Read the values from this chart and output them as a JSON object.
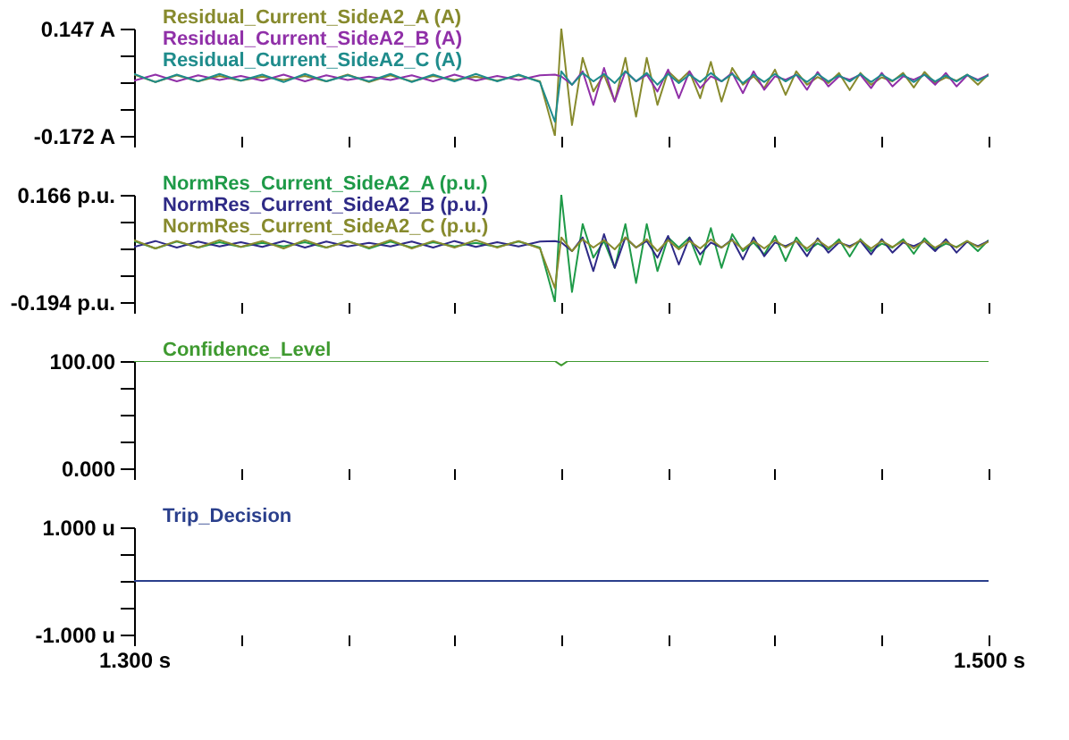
{
  "chart_data": [
    {
      "type": "line",
      "legend": "top left",
      "tick_labels": "y",
      "xlim": [
        1.3,
        1.5
      ],
      "xticks": [
        {
          "value": 1.3,
          "label": null
        },
        {
          "value": 1.325,
          "label": null
        },
        {
          "value": 1.35,
          "label": null
        },
        {
          "value": 1.375,
          "label": null
        },
        {
          "value": 1.4,
          "label": null
        },
        {
          "value": 1.425,
          "label": null
        },
        {
          "value": 1.45,
          "label": null
        },
        {
          "value": 1.475,
          "label": null
        },
        {
          "value": 1.5,
          "label": null
        }
      ],
      "ylim": [
        -0.172,
        0.147
      ],
      "yticks": [
        {
          "value": 0.147,
          "label": "0.147 A"
        },
        {
          "value": 0.0672,
          "label": null
        },
        {
          "value": -0.0125,
          "label": null
        },
        {
          "value": -0.0922,
          "label": null
        },
        {
          "value": -0.172,
          "label": "-0.172 A"
        }
      ],
      "x": [
        1.3,
        1.305,
        1.31,
        1.315,
        1.32,
        1.325,
        1.33,
        1.335,
        1.34,
        1.345,
        1.35,
        1.355,
        1.36,
        1.365,
        1.37,
        1.375,
        1.38,
        1.385,
        1.39,
        1.395,
        1.3985,
        1.4,
        1.4025,
        1.405,
        1.4075,
        1.41,
        1.4125,
        1.415,
        1.4175,
        1.42,
        1.4225,
        1.425,
        1.4275,
        1.43,
        1.4325,
        1.435,
        1.4375,
        1.44,
        1.4425,
        1.445,
        1.4475,
        1.45,
        1.4525,
        1.455,
        1.4575,
        1.46,
        1.4625,
        1.465,
        1.4675,
        1.47,
        1.4725,
        1.475,
        1.4775,
        1.48,
        1.4825,
        1.485,
        1.4875,
        1.49,
        1.4925,
        1.495,
        1.4975,
        1.5
      ],
      "series": [
        {
          "name": "Residual_Current_SideA2_A (A)",
          "color": "#878a2d",
          "values": [
            0.01,
            -0.012,
            0.008,
            -0.01,
            0.006,
            -0.008,
            0.004,
            -0.006,
            0.006,
            -0.01,
            0.01,
            -0.012,
            0.008,
            -0.01,
            0.006,
            -0.006,
            0.004,
            -0.008,
            0.008,
            -0.01,
            -0.172,
            0.147,
            -0.14,
            0.06,
            -0.04,
            0.01,
            -0.07,
            0.06,
            -0.115,
            0.06,
            -0.08,
            0.02,
            -0.01,
            0.02,
            -0.06,
            0.048,
            -0.07,
            0.03,
            -0.02,
            0.005,
            -0.03,
            0.025,
            -0.05,
            0.02,
            -0.02,
            0.003,
            -0.015,
            0.015,
            -0.036,
            0.015,
            -0.02,
            0.002,
            -0.01,
            0.015,
            -0.028,
            0.018,
            -0.015,
            0.002,
            -0.008,
            0.01,
            -0.02,
            0.012
          ]
        },
        {
          "name": "Residual_Current_SideA2_B (A)",
          "color": "#9030a8",
          "values": [
            -0.008,
            0.01,
            -0.01,
            0.008,
            -0.006,
            0.006,
            -0.008,
            0.01,
            -0.01,
            0.008,
            -0.006,
            0.004,
            -0.006,
            0.008,
            -0.01,
            0.01,
            -0.008,
            0.006,
            -0.006,
            0.008,
            0.01,
            0.005,
            -0.02,
            0.02,
            -0.08,
            0.03,
            -0.07,
            0.02,
            -0.01,
            0.01,
            -0.04,
            0.025,
            -0.06,
            0.02,
            -0.03,
            0.005,
            -0.01,
            0.015,
            -0.045,
            0.02,
            -0.035,
            0.005,
            -0.005,
            0.01,
            -0.035,
            0.018,
            -0.025,
            0.005,
            -0.005,
            0.01,
            -0.03,
            0.015,
            -0.025,
            0.005,
            -0.005,
            0.01,
            -0.02,
            0.015,
            -0.025,
            0.008,
            -0.005,
            0.01
          ]
        },
        {
          "name": "Residual_Current_SideA2_C (A)",
          "color": "#1f8c8c",
          "values": [
            0.012,
            -0.012,
            0.01,
            -0.01,
            0.012,
            -0.008,
            0.01,
            -0.012,
            0.012,
            -0.01,
            0.008,
            -0.01,
            0.012,
            -0.012,
            0.01,
            -0.01,
            0.012,
            -0.01,
            0.01,
            -0.012,
            -0.13,
            0.02,
            -0.02,
            0.015,
            -0.01,
            0.012,
            -0.015,
            0.02,
            -0.01,
            0.015,
            -0.02,
            0.012,
            -0.015,
            0.01,
            -0.012,
            0.015,
            -0.01,
            0.012,
            -0.015,
            0.01,
            -0.012,
            0.012,
            -0.01,
            0.01,
            -0.012,
            0.012,
            -0.01,
            0.008,
            -0.01,
            0.012,
            -0.012,
            0.01,
            -0.008,
            0.01,
            -0.012,
            0.01,
            -0.01,
            0.008,
            -0.01,
            0.01,
            -0.008,
            0.008
          ]
        }
      ]
    },
    {
      "type": "line",
      "legend": "top left",
      "tick_labels": "y",
      "xlim": [
        1.3,
        1.5
      ],
      "xticks": [
        {
          "value": 1.3,
          "label": null
        },
        {
          "value": 1.325,
          "label": null
        },
        {
          "value": 1.35,
          "label": null
        },
        {
          "value": 1.375,
          "label": null
        },
        {
          "value": 1.4,
          "label": null
        },
        {
          "value": 1.425,
          "label": null
        },
        {
          "value": 1.45,
          "label": null
        },
        {
          "value": 1.475,
          "label": null
        },
        {
          "value": 1.5,
          "label": null
        }
      ],
      "ylim": [
        -0.194,
        0.166
      ],
      "yticks": [
        {
          "value": 0.166,
          "label": "0.166 p.u."
        },
        {
          "value": 0.076,
          "label": null
        },
        {
          "value": -0.014,
          "label": null
        },
        {
          "value": -0.104,
          "label": null
        },
        {
          "value": -0.194,
          "label": "-0.194 p.u."
        }
      ],
      "x": [
        1.3,
        1.305,
        1.31,
        1.315,
        1.32,
        1.325,
        1.33,
        1.335,
        1.34,
        1.345,
        1.35,
        1.355,
        1.36,
        1.365,
        1.37,
        1.375,
        1.38,
        1.385,
        1.39,
        1.395,
        1.3985,
        1.4,
        1.4025,
        1.405,
        1.4075,
        1.41,
        1.4125,
        1.415,
        1.4175,
        1.42,
        1.4225,
        1.425,
        1.4275,
        1.43,
        1.4325,
        1.435,
        1.4375,
        1.44,
        1.4425,
        1.445,
        1.4475,
        1.45,
        1.4525,
        1.455,
        1.4575,
        1.46,
        1.4625,
        1.465,
        1.4675,
        1.47,
        1.4725,
        1.475,
        1.4775,
        1.48,
        1.4825,
        1.485,
        1.4875,
        1.49,
        1.4925,
        1.495,
        1.4975,
        1.5
      ],
      "series": [
        {
          "name": "NormRes_Current_SideA2_A (p.u.)",
          "color": "#1e9a48",
          "values": [
            0.011,
            -0.014,
            0.009,
            -0.011,
            0.007,
            -0.009,
            0.005,
            -0.007,
            0.007,
            -0.011,
            0.011,
            -0.014,
            0.009,
            -0.011,
            0.007,
            -0.007,
            0.005,
            -0.009,
            0.009,
            -0.011,
            -0.194,
            0.166,
            -0.16,
            0.068,
            -0.045,
            0.011,
            -0.079,
            0.068,
            -0.13,
            0.068,
            -0.09,
            0.023,
            -0.011,
            0.023,
            -0.068,
            0.054,
            -0.079,
            0.034,
            -0.023,
            0.006,
            -0.034,
            0.028,
            -0.056,
            0.023,
            -0.023,
            0.003,
            -0.017,
            0.017,
            -0.041,
            0.017,
            -0.023,
            0.002,
            -0.011,
            0.017,
            -0.032,
            0.02,
            -0.017,
            0.002,
            -0.009,
            0.011,
            -0.023,
            0.014
          ]
        },
        {
          "name": "NormRes_Current_SideA2_B (p.u.)",
          "color": "#2e2a86",
          "values": [
            -0.009,
            0.011,
            -0.011,
            0.009,
            -0.007,
            0.007,
            -0.009,
            0.011,
            -0.011,
            0.009,
            -0.007,
            0.005,
            -0.007,
            0.009,
            -0.011,
            0.011,
            -0.009,
            0.007,
            -0.007,
            0.009,
            0.011,
            0.006,
            -0.023,
            0.023,
            -0.09,
            0.034,
            -0.079,
            0.023,
            -0.011,
            0.011,
            -0.045,
            0.028,
            -0.068,
            0.023,
            -0.034,
            0.006,
            -0.011,
            0.017,
            -0.051,
            0.023,
            -0.04,
            0.006,
            -0.006,
            0.011,
            -0.04,
            0.02,
            -0.028,
            0.006,
            -0.006,
            0.011,
            -0.034,
            0.017,
            -0.028,
            0.006,
            -0.006,
            0.011,
            -0.023,
            0.017,
            -0.028,
            0.009,
            -0.006,
            0.011
          ]
        },
        {
          "name": "NormRes_Current_SideA2_C (p.u.)",
          "color": "#878a2d",
          "values": [
            0.014,
            -0.014,
            0.011,
            -0.011,
            0.014,
            -0.009,
            0.011,
            -0.014,
            0.014,
            -0.011,
            0.009,
            -0.011,
            0.014,
            -0.014,
            0.011,
            -0.011,
            0.014,
            -0.011,
            0.011,
            -0.014,
            -0.147,
            0.023,
            -0.023,
            0.017,
            -0.011,
            0.014,
            -0.017,
            0.023,
            -0.011,
            0.017,
            -0.023,
            0.014,
            -0.017,
            0.011,
            -0.014,
            0.017,
            -0.011,
            0.014,
            -0.017,
            0.011,
            -0.014,
            0.014,
            -0.011,
            0.011,
            -0.014,
            0.014,
            -0.011,
            0.009,
            -0.011,
            0.014,
            -0.014,
            0.011,
            -0.009,
            0.011,
            -0.014,
            0.011,
            -0.011,
            0.009,
            -0.011,
            0.011,
            -0.009,
            0.009
          ]
        }
      ]
    },
    {
      "type": "line",
      "legend": "top left",
      "tick_labels": "y",
      "xlim": [
        1.3,
        1.5
      ],
      "xticks": [
        {
          "value": 1.3,
          "label": null
        },
        {
          "value": 1.325,
          "label": null
        },
        {
          "value": 1.35,
          "label": null
        },
        {
          "value": 1.375,
          "label": null
        },
        {
          "value": 1.4,
          "label": null
        },
        {
          "value": 1.425,
          "label": null
        },
        {
          "value": 1.45,
          "label": null
        },
        {
          "value": 1.475,
          "label": null
        },
        {
          "value": 1.5,
          "label": null
        }
      ],
      "ylim": [
        0,
        100
      ],
      "yticks": [
        {
          "value": 100,
          "label": "100.00"
        },
        {
          "value": 75,
          "label": null
        },
        {
          "value": 50,
          "label": null
        },
        {
          "value": 25,
          "label": null
        },
        {
          "value": 0,
          "label": "0.000"
        }
      ],
      "x": [
        1.3,
        1.3985,
        1.4,
        1.4015,
        1.5
      ],
      "series": [
        {
          "name": "Confidence_Level",
          "color": "#3f9a30",
          "values": [
            100,
            100,
            96,
            100,
            100
          ]
        }
      ]
    },
    {
      "type": "line",
      "legend": "top left",
      "xlim": [
        1.3,
        1.5
      ],
      "xticks": [
        {
          "value": 1.3,
          "label": "1.300 s"
        },
        {
          "value": 1.325,
          "label": null
        },
        {
          "value": 1.35,
          "label": null
        },
        {
          "value": 1.375,
          "label": null
        },
        {
          "value": 1.4,
          "label": null
        },
        {
          "value": 1.425,
          "label": null
        },
        {
          "value": 1.45,
          "label": null
        },
        {
          "value": 1.475,
          "label": null
        },
        {
          "value": 1.5,
          "label": "1.500 s"
        }
      ],
      "ylim": [
        -1,
        1
      ],
      "yticks": [
        {
          "value": 1,
          "label": "1.000 u"
        },
        {
          "value": 0.5,
          "label": null
        },
        {
          "value": 0,
          "label": null
        },
        {
          "value": -0.5,
          "label": null
        },
        {
          "value": -1,
          "label": "-1.000 u"
        }
      ],
      "x": [
        1.3,
        1.5
      ],
      "series": [
        {
          "name": "Trip_Decision",
          "color": "#2a3f8c",
          "values": [
            0,
            0
          ]
        }
      ]
    }
  ]
}
